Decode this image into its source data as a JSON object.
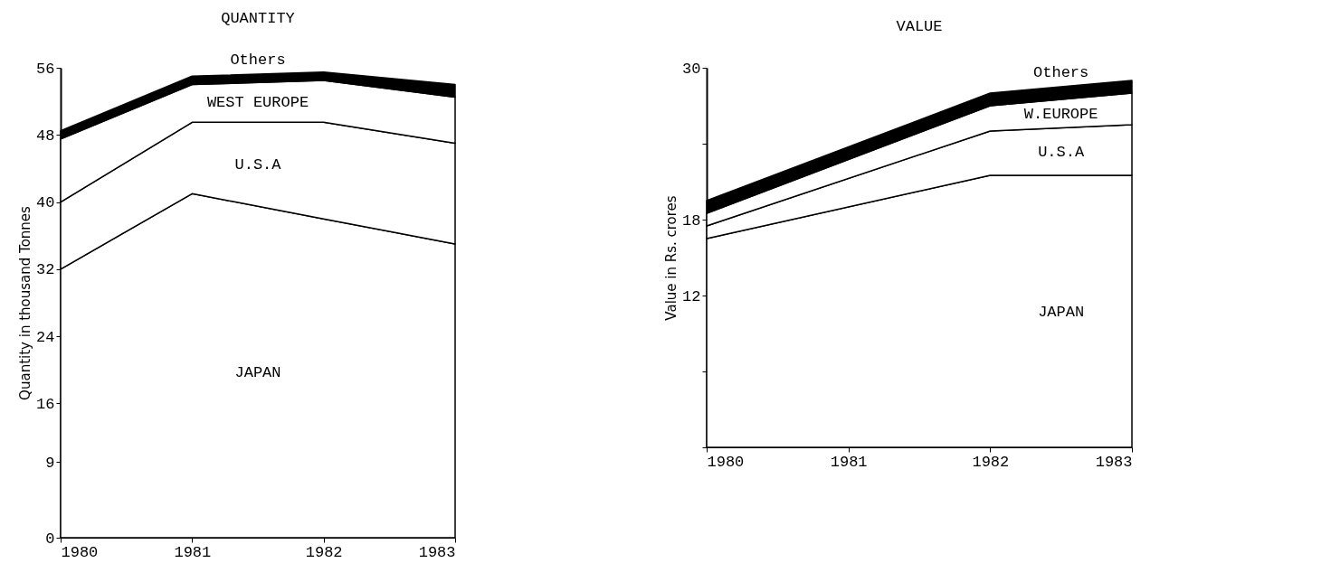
{
  "chart_data": [
    {
      "type": "area",
      "title": "QUANTITY",
      "ylabel": "Quantity in thousand Tonnes",
      "stacked": true,
      "x": [
        1980,
        1981,
        1982,
        1983
      ],
      "xlim": [
        1980,
        1983
      ],
      "xticks": [
        1980,
        1981,
        1982,
        1983
      ],
      "ylim": [
        0,
        56
      ],
      "yticks": [
        0,
        9,
        16,
        24,
        32,
        40,
        48,
        56
      ],
      "series": [
        {
          "name": "JAPAN",
          "color": "#ffffff",
          "values": [
            32,
            41,
            38,
            35
          ]
        },
        {
          "name": "U.S.A",
          "color": "#ffffff",
          "values": [
            8,
            8.5,
            11.5,
            12
          ]
        },
        {
          "name": "WEST EUROPE",
          "color": "#ffffff",
          "values": [
            7.5,
            4.5,
            5,
            5.5
          ]
        },
        {
          "name": "Others",
          "color": "#000000",
          "values": [
            1,
            1,
            1,
            1.5
          ]
        }
      ]
    },
    {
      "type": "area",
      "title": "VALUE",
      "ylabel": "Value in Rs. crores",
      "stacked": true,
      "x": [
        1980,
        1982,
        1983
      ],
      "xlim": [
        1980,
        1983
      ],
      "xticks": [
        1980,
        1981,
        1982,
        1983
      ],
      "ylim": [
        0,
        30
      ],
      "yticks": [
        {
          "value": 0,
          "label": null
        },
        {
          "value": 6,
          "label": null
        },
        12,
        18,
        {
          "value": 24,
          "label": null
        },
        30
      ],
      "series": [
        {
          "name": "JAPAN",
          "color": "#ffffff",
          "values": [
            16.5,
            21.5,
            21.5
          ]
        },
        {
          "name": "U.S.A",
          "color": "#ffffff",
          "values": [
            1,
            3.5,
            4
          ]
        },
        {
          "name": "W.EUROPE",
          "color": "#ffffff",
          "values": [
            1,
            2,
            2.5
          ]
        },
        {
          "name": "Others",
          "color": "#000000",
          "values": [
            1,
            1,
            1
          ]
        }
      ]
    }
  ]
}
